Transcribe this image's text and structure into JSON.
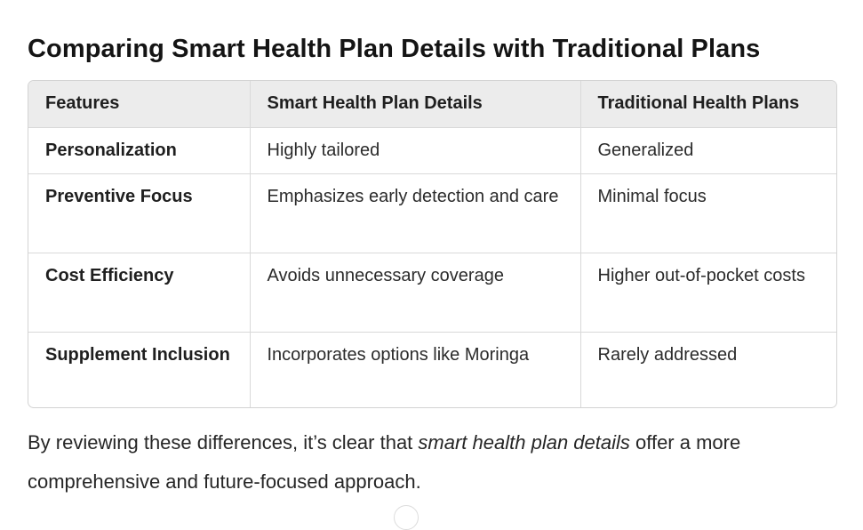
{
  "heading": "Comparing Smart Health Plan Details with Traditional Plans",
  "table": {
    "headers": [
      "Features",
      "Smart Health Plan Details",
      "Traditional Health Plans"
    ],
    "rows": [
      [
        "Personalization",
        "Highly tailored",
        "Generalized"
      ],
      [
        "Preventive Focus",
        "Emphasizes early detection and care",
        "Minimal focus"
      ],
      [
        "Cost Efficiency",
        "Avoids unnecessary coverage",
        "Higher out-of-pocket costs"
      ],
      [
        "Supplement Inclusion",
        "Incorporates options like Moringa",
        "Rarely addressed"
      ]
    ]
  },
  "summary": {
    "before": "By reviewing these differences, it’s clear that ",
    "emphasis": "smart health plan details",
    "after": " offer a more comprehensive and future-focused approach."
  }
}
